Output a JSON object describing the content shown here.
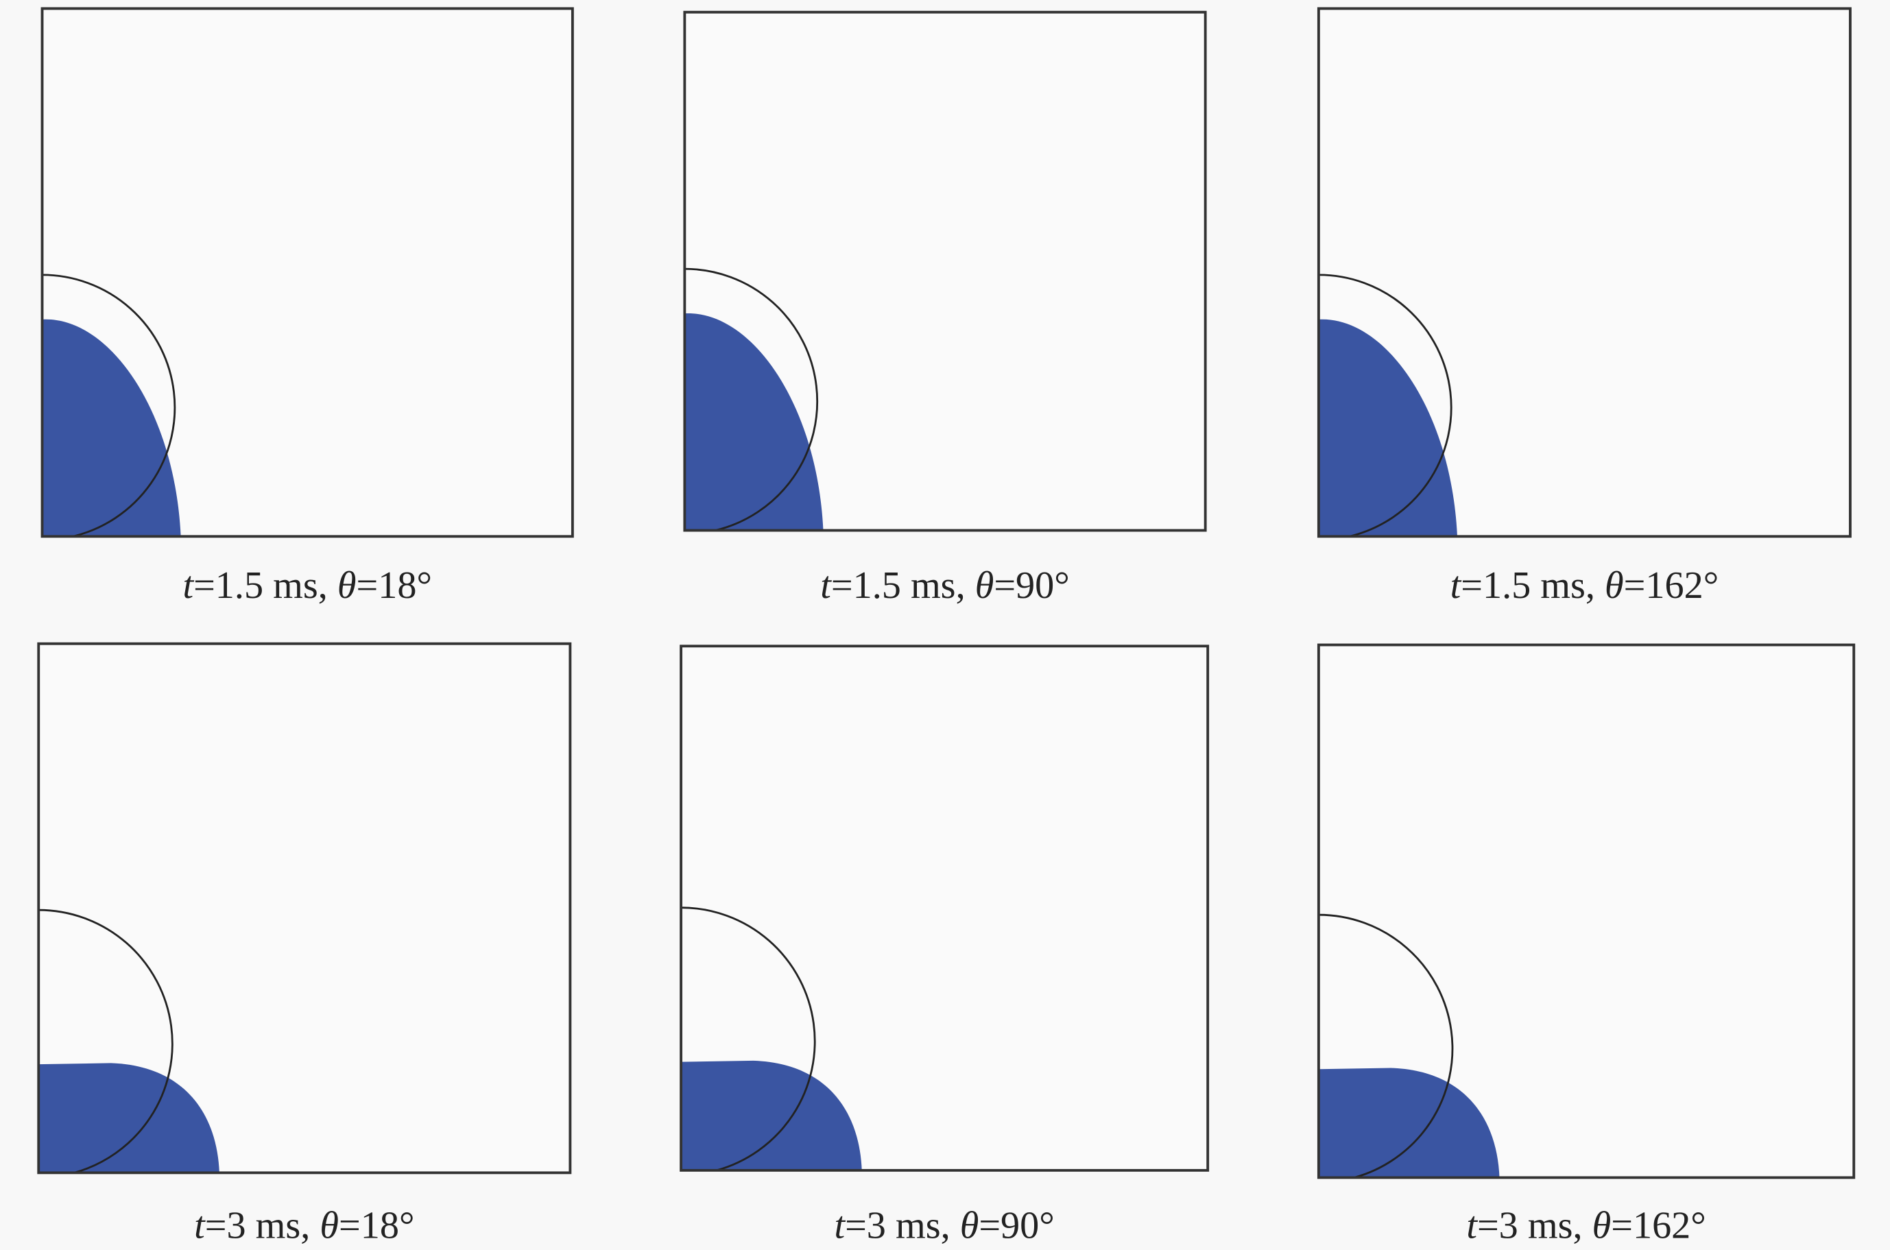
{
  "colors": {
    "background": "#f8f8f8",
    "liquid": "#3a55a2",
    "outline": "#222222",
    "frame": "#333333"
  },
  "panels": [
    {
      "t_symbol": "t",
      "t_value": "=1.5 ms, ",
      "theta_symbol": "θ",
      "theta_value": "=18°"
    },
    {
      "t_symbol": "t",
      "t_value": "=1.5 ms, ",
      "theta_symbol": "θ",
      "theta_value": "=90°"
    },
    {
      "t_symbol": "t",
      "t_value": "=1.5 ms, ",
      "theta_symbol": "θ",
      "theta_value": "=162°"
    },
    {
      "t_symbol": "t",
      "t_value": "=3 ms, ",
      "theta_symbol": "θ",
      "theta_value": "=18°"
    },
    {
      "t_symbol": "t",
      "t_value": "=3 ms, ",
      "theta_symbol": "θ",
      "theta_value": "=90°"
    },
    {
      "t_symbol": "t",
      "t_value": "=3 ms, ",
      "theta_symbol": "θ",
      "theta_value": "=162°"
    }
  ]
}
